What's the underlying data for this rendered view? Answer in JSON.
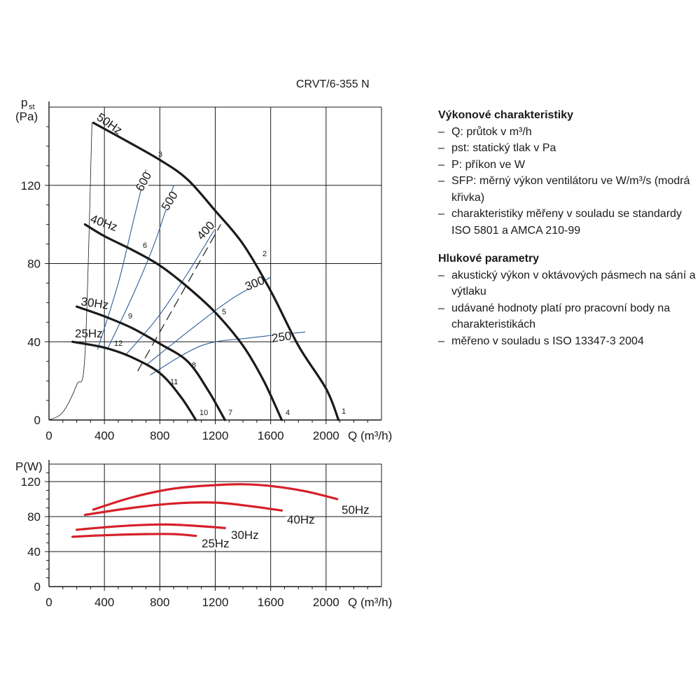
{
  "model": "CRVT/6-355 N",
  "info": {
    "perf_title": "Výkonové charakteristiky",
    "perf_items": [
      "Q: průtok v m³/h",
      "pst: statický tlak v Pa",
      "P: příkon ve W",
      "SFP: měrný výkon ventilátoru ve W/m³/s (modrá křivka)",
      "charakteristiky měřeny v souladu se standardy ISO 5801 a AMCA 210-99"
    ],
    "noise_title": "Hlukové parametry",
    "noise_items": [
      "akustický výkon v oktávových pásmech na sání a výtlaku",
      "udávané hodnoty platí pro pracovní body na charakteristikách",
      "měřeno v souladu s ISO 13347-3 2004"
    ]
  },
  "colors": {
    "black": "#1a1a1a",
    "sfp": "#2f5d9a",
    "power": "#d6202a",
    "grid": "#1a1a1a"
  },
  "chart_data": [
    {
      "type": "line",
      "ylabel_main": "p",
      "ylabel_sub": "st",
      "ylabel_unit": "(Pa)",
      "xlabel": "Q (m³/h)",
      "xlim": [
        0,
        2400
      ],
      "ylim": [
        0,
        160
      ],
      "xticks": [
        0,
        400,
        800,
        1200,
        1600,
        2000
      ],
      "xtick_labels": [
        "0",
        "400",
        "800",
        "1200",
        "1600",
        "2000"
      ],
      "yticks": [
        0,
        40,
        80,
        120
      ],
      "ytick_labels": [
        "0",
        "40",
        "80",
        "120"
      ],
      "grid": true,
      "series": [
        {
          "name": "50Hz",
          "points": [
            [
              320,
              152
            ],
            [
              500,
              145
            ],
            [
              800,
              133
            ],
            [
              1000,
              123
            ],
            [
              1200,
              107
            ],
            [
              1400,
              90
            ],
            [
              1600,
              66
            ],
            [
              1800,
              38
            ],
            [
              2000,
              16
            ],
            [
              2090,
              0
            ]
          ]
        },
        {
          "name": "40Hz",
          "points": [
            [
              260,
              100
            ],
            [
              400,
              94
            ],
            [
              600,
              87
            ],
            [
              800,
              79
            ],
            [
              1000,
              68
            ],
            [
              1200,
              55
            ],
            [
              1400,
              38
            ],
            [
              1550,
              20
            ],
            [
              1680,
              0
            ]
          ]
        },
        {
          "name": "30Hz",
          "points": [
            [
              200,
              58
            ],
            [
              400,
              53
            ],
            [
              600,
              47
            ],
            [
              800,
              39
            ],
            [
              1000,
              30
            ],
            [
              1150,
              15
            ],
            [
              1270,
              0
            ]
          ]
        },
        {
          "name": "25Hz",
          "points": [
            [
              170,
              40
            ],
            [
              400,
              37
            ],
            [
              600,
              32
            ],
            [
              800,
              24
            ],
            [
              950,
              12
            ],
            [
              1060,
              0
            ]
          ]
        }
      ],
      "sfp_curves": [
        {
          "name": "600",
          "points": [
            [
              350,
              36
            ],
            [
              500,
              70
            ],
            [
              610,
              102
            ],
            [
              700,
              128
            ]
          ]
        },
        {
          "name": "500",
          "points": [
            [
              420,
              36
            ],
            [
              600,
              63
            ],
            [
              760,
              90
            ],
            [
              900,
              120
            ]
          ]
        },
        {
          "name": "400",
          "points": [
            [
              550,
              33
            ],
            [
              780,
              52
            ],
            [
              1000,
              75
            ],
            [
              1200,
              98
            ]
          ]
        },
        {
          "name": "300",
          "points": [
            [
              700,
              28
            ],
            [
              1000,
              45
            ],
            [
              1320,
              62
            ],
            [
              1600,
              73
            ]
          ]
        },
        {
          "name": "250",
          "points": [
            [
              730,
              23
            ],
            [
              1100,
              38
            ],
            [
              1450,
              42
            ],
            [
              1850,
              45
            ]
          ]
        }
      ],
      "system_line": {
        "points": [
          [
            640,
            25
          ],
          [
            1240,
            100
          ]
        ]
      },
      "system_curve": {
        "points": [
          [
            0,
            0
          ],
          [
            100,
            4
          ],
          [
            200,
            18
          ],
          [
            260,
            34
          ],
          [
            310,
            152
          ]
        ]
      },
      "point_labels": [
        "1",
        "2",
        "3",
        "4",
        "5",
        "6",
        "7",
        "8",
        "9",
        "10",
        "11",
        "12"
      ],
      "annotations": [
        "50Hz",
        "40Hz",
        "30Hz",
        "25Hz",
        "600",
        "500",
        "400",
        "300",
        "250"
      ]
    },
    {
      "type": "line",
      "ylabel": "P(W)",
      "xlabel": "Q (m³/h)",
      "xlim": [
        0,
        2400
      ],
      "ylim": [
        0,
        140
      ],
      "xticks": [
        0,
        400,
        800,
        1200,
        1600,
        2000
      ],
      "xtick_labels": [
        "0",
        "400",
        "800",
        "1200",
        "1600",
        "2000"
      ],
      "yticks": [
        0,
        40,
        80,
        120
      ],
      "ytick_labels": [
        "0",
        "40",
        "80",
        "120"
      ],
      "grid": true,
      "series": [
        {
          "name": "50Hz",
          "points": [
            [
              320,
              88
            ],
            [
              600,
              102
            ],
            [
              900,
              112
            ],
            [
              1200,
              116
            ],
            [
              1400,
              117
            ],
            [
              1600,
              115
            ],
            [
              1850,
              109
            ],
            [
              2080,
              100
            ]
          ]
        },
        {
          "name": "40Hz",
          "points": [
            [
              260,
              82
            ],
            [
              600,
              90
            ],
            [
              900,
              95
            ],
            [
              1200,
              96
            ],
            [
              1450,
              92
            ],
            [
              1680,
              87
            ]
          ]
        },
        {
          "name": "30Hz",
          "points": [
            [
              200,
              65
            ],
            [
              500,
              69
            ],
            [
              800,
              71
            ],
            [
              1000,
              70
            ],
            [
              1270,
              67
            ]
          ]
        },
        {
          "name": "25Hz",
          "points": [
            [
              170,
              57
            ],
            [
              450,
              59
            ],
            [
              700,
              60
            ],
            [
              900,
              60
            ],
            [
              1060,
              58
            ]
          ]
        }
      ]
    }
  ]
}
